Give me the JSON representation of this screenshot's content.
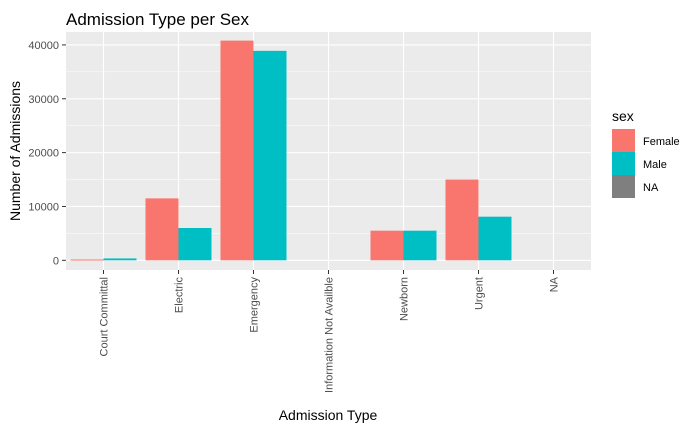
{
  "chart_data": {
    "type": "bar",
    "title": "Admission Type per Sex",
    "xlabel": "Admission Type",
    "ylabel": "Number of Admissions",
    "categories": [
      "Court Committal",
      "Electric",
      "Emergency",
      "Information Not Availble",
      "Newborn",
      "Urgent",
      "NA"
    ],
    "series": [
      {
        "name": "Female",
        "color": "#F8766D",
        "values": [
          150,
          11500,
          40800,
          null,
          5500,
          15000,
          null
        ]
      },
      {
        "name": "Male",
        "color": "#00BFC4",
        "values": [
          350,
          6000,
          38900,
          null,
          5500,
          8100,
          null
        ]
      }
    ],
    "ylim": [
      -1800,
      42400
    ],
    "yticks": [
      0,
      10000,
      20000,
      30000,
      40000
    ],
    "ytick_labels": [
      "0",
      "10000",
      "20000",
      "30000",
      "40000"
    ],
    "legend": {
      "title": "sex",
      "placement": "right",
      "entries": [
        {
          "label": "Female",
          "color": "#F8766D"
        },
        {
          "label": "Male",
          "color": "#00BFC4"
        },
        {
          "label": "NA",
          "color": "#7F7F7F"
        }
      ]
    },
    "grid": true,
    "panel_background": "#EBEBEB",
    "grid_color": "#FFFFFF"
  }
}
